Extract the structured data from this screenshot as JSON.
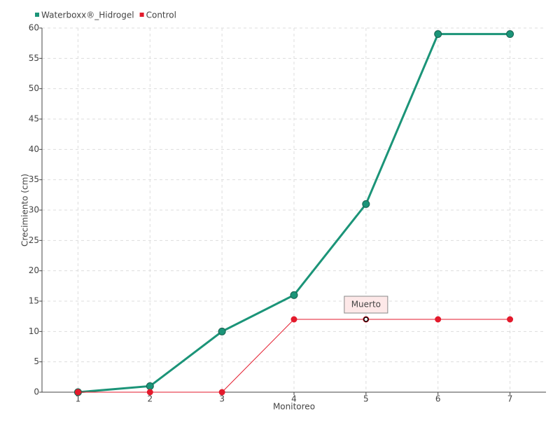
{
  "chart_data": {
    "type": "line",
    "x_label": "Monitoreo",
    "y_label": "Crecimiento (cm)",
    "categories": [
      "1",
      "2",
      "3",
      "4",
      "5",
      "6",
      "7"
    ],
    "series": [
      {
        "name": "Waterboxx®_Hidrogel",
        "color": "#1b9478",
        "values": [
          0,
          1,
          10,
          16,
          31,
          59,
          59
        ]
      },
      {
        "name": "Control",
        "color": "#e31a2c",
        "values": [
          0,
          0,
          0,
          12,
          12,
          12,
          12
        ]
      }
    ],
    "annotations": [
      {
        "text": "Muerto",
        "series": "Control",
        "category": "5"
      }
    ],
    "ylim": [
      0,
      60
    ],
    "yticks": [
      0,
      5,
      10,
      15,
      20,
      25,
      30,
      35,
      40,
      45,
      50,
      55,
      60
    ],
    "grid": true,
    "legend": "top-left"
  }
}
